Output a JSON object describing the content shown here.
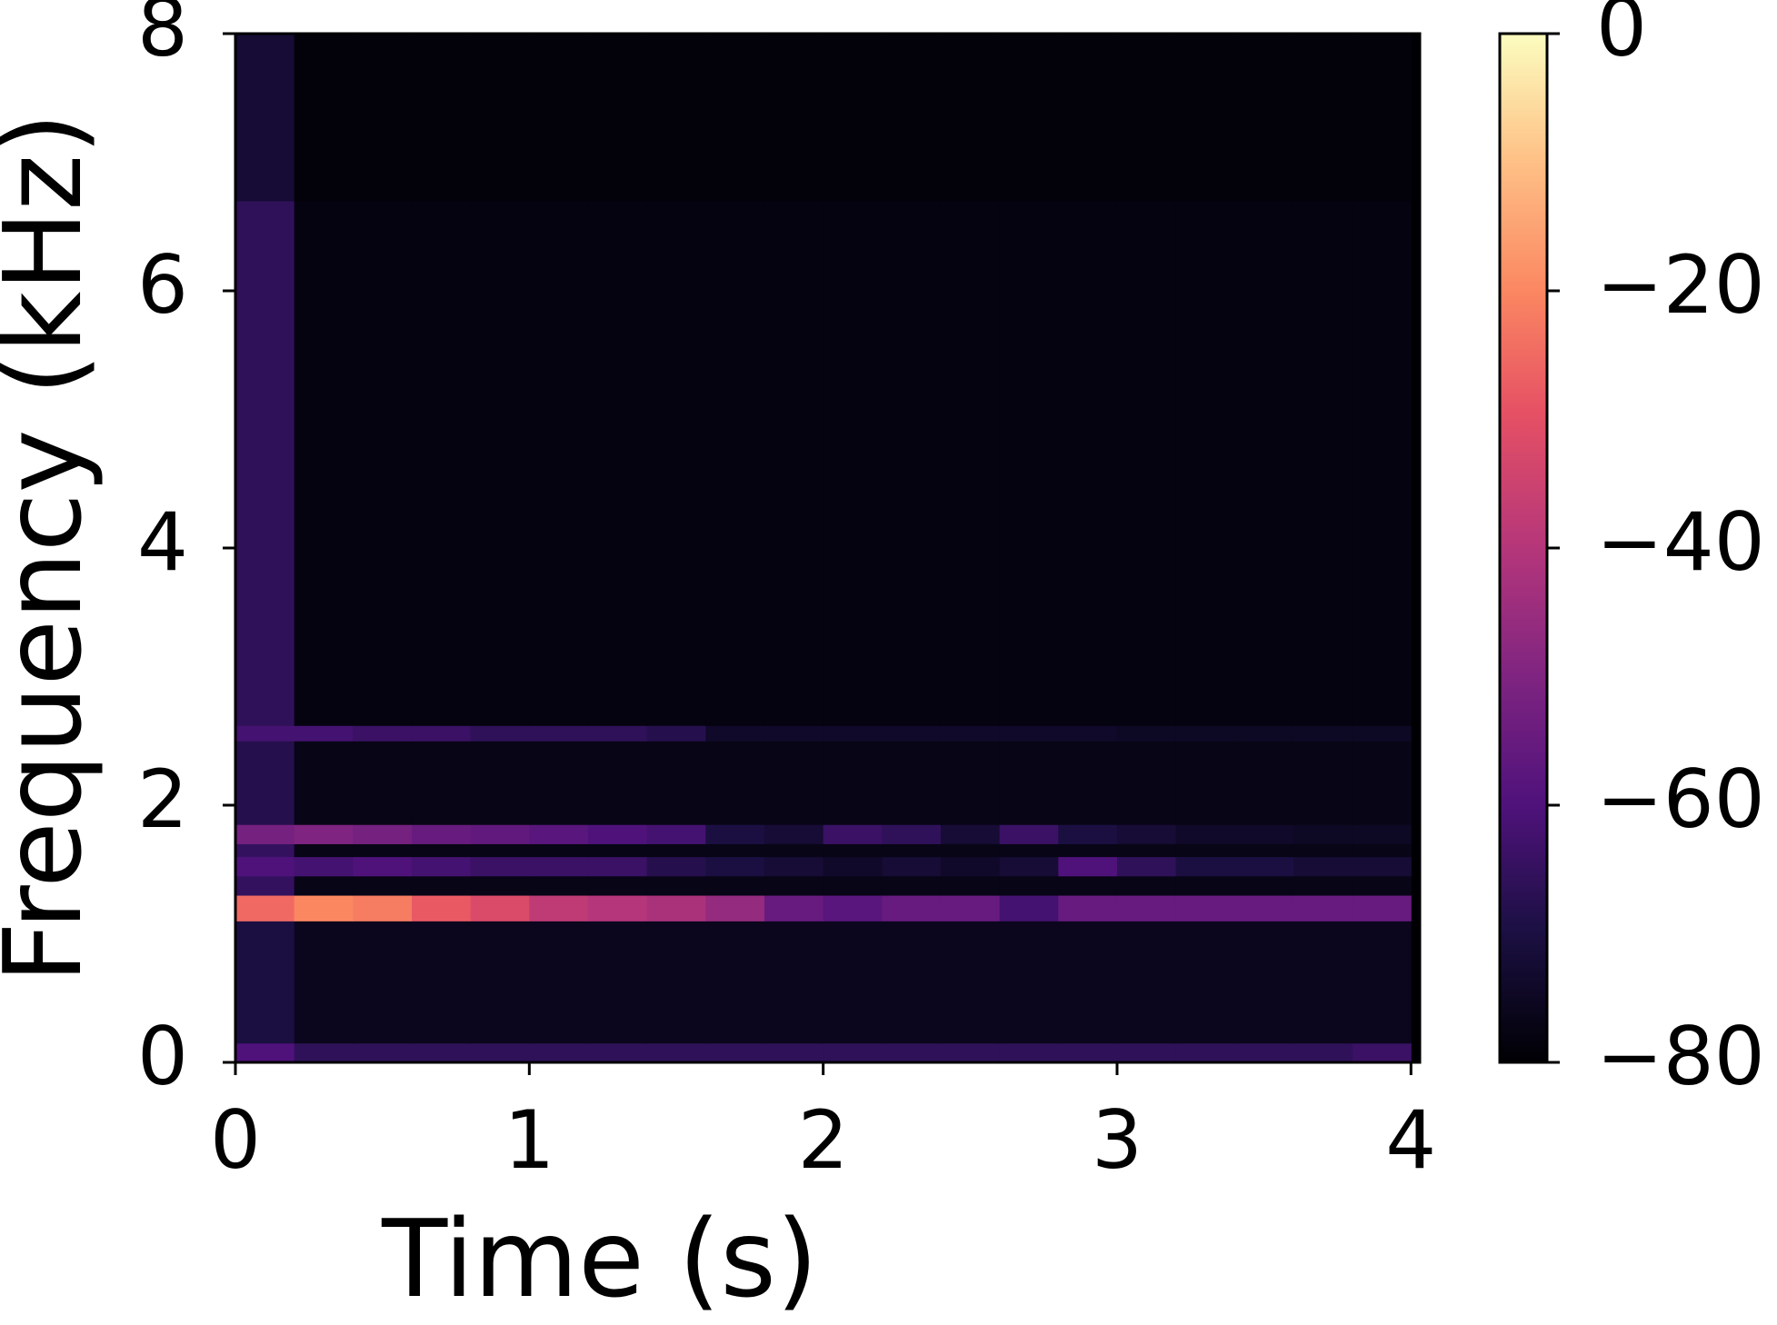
{
  "chart_data": {
    "type": "heatmap",
    "xlabel": "Time (s)",
    "ylabel": "Frequency (kHz)",
    "colormap": "magma",
    "x_edges": [
      0,
      0.2,
      0.4,
      0.6,
      0.8,
      1.0,
      1.2,
      1.4,
      1.6,
      1.8,
      2.0,
      2.2,
      2.4,
      2.6,
      2.8,
      3.0,
      3.2,
      3.4,
      3.6,
      3.8,
      4.0
    ],
    "y_edges": [
      0,
      0.15,
      1.1,
      1.3,
      1.45,
      1.6,
      1.7,
      1.85,
      2.5,
      2.62,
      6.7,
      8
    ],
    "z": [
      [
        -60,
        -66,
        -66,
        -66,
        -66,
        -66,
        -66,
        -66,
        -66,
        -66,
        -66,
        -66,
        -66,
        -66,
        -66,
        -66,
        -66,
        -66,
        -66,
        -64
      ],
      [
        -70,
        -76,
        -76,
        -76,
        -76,
        -76,
        -76,
        -76,
        -76,
        -76,
        -76,
        -76,
        -76,
        -76,
        -76,
        -76,
        -76,
        -76,
        -76,
        -76
      ],
      [
        -25,
        -20,
        -22,
        -28,
        -32,
        -38,
        -40,
        -42,
        -46,
        -55,
        -58,
        -55,
        -55,
        -62,
        -55,
        -55,
        -55,
        -55,
        -55,
        -55
      ],
      [
        -65,
        -77,
        -77,
        -77,
        -77,
        -77,
        -77,
        -77,
        -77,
        -77,
        -77,
        -77,
        -77,
        -77,
        -77,
        -77,
        -77,
        -77,
        -77,
        -77
      ],
      [
        -60,
        -62,
        -60,
        -62,
        -64,
        -64,
        -64,
        -68,
        -70,
        -72,
        -74,
        -72,
        -74,
        -72,
        -60,
        -66,
        -70,
        -70,
        -72,
        -72
      ],
      [
        -65,
        -77,
        -77,
        -77,
        -77,
        -77,
        -77,
        -77,
        -77,
        -77,
        -77,
        -77,
        -77,
        -77,
        -77,
        -77,
        -77,
        -77,
        -77,
        -77
      ],
      [
        -52,
        -50,
        -52,
        -55,
        -56,
        -58,
        -60,
        -62,
        -70,
        -72,
        -64,
        -66,
        -72,
        -64,
        -70,
        -72,
        -74,
        -74,
        -75,
        -75
      ],
      [
        -68,
        -77,
        -77,
        -77,
        -77,
        -77,
        -77,
        -77,
        -77,
        -77,
        -77,
        -77,
        -77,
        -77,
        -77,
        -77,
        -77,
        -77,
        -77,
        -77
      ],
      [
        -62,
        -62,
        -64,
        -64,
        -66,
        -66,
        -66,
        -68,
        -74,
        -74,
        -74,
        -74,
        -74,
        -74,
        -74,
        -75,
        -75,
        -75,
        -75,
        -75
      ],
      [
        -66,
        -78,
        -78,
        -78,
        -78,
        -78,
        -78,
        -78,
        -78,
        -78,
        -78,
        -78,
        -78,
        -78,
        -78,
        -78,
        -78,
        -78,
        -78,
        -78
      ],
      [
        -72,
        -79,
        -79,
        -79,
        -79,
        -79,
        -79,
        -79,
        -79,
        -79,
        -79,
        -79,
        -79,
        -79,
        -79,
        -79,
        -79,
        -79,
        -79,
        -79
      ]
    ],
    "xlim": [
      0,
      4.03
    ],
    "ylim": [
      0,
      8
    ],
    "xticks": [
      0,
      1,
      2,
      3,
      4
    ],
    "yticks": [
      0,
      2,
      4,
      6,
      8
    ],
    "clim": [
      -80,
      0
    ],
    "cticks": [
      {
        "value": -80,
        "label": "−80"
      },
      {
        "value": -60,
        "label": "−60"
      },
      {
        "value": -40,
        "label": "−40"
      },
      {
        "value": -20,
        "label": "−20"
      },
      0
    ]
  }
}
